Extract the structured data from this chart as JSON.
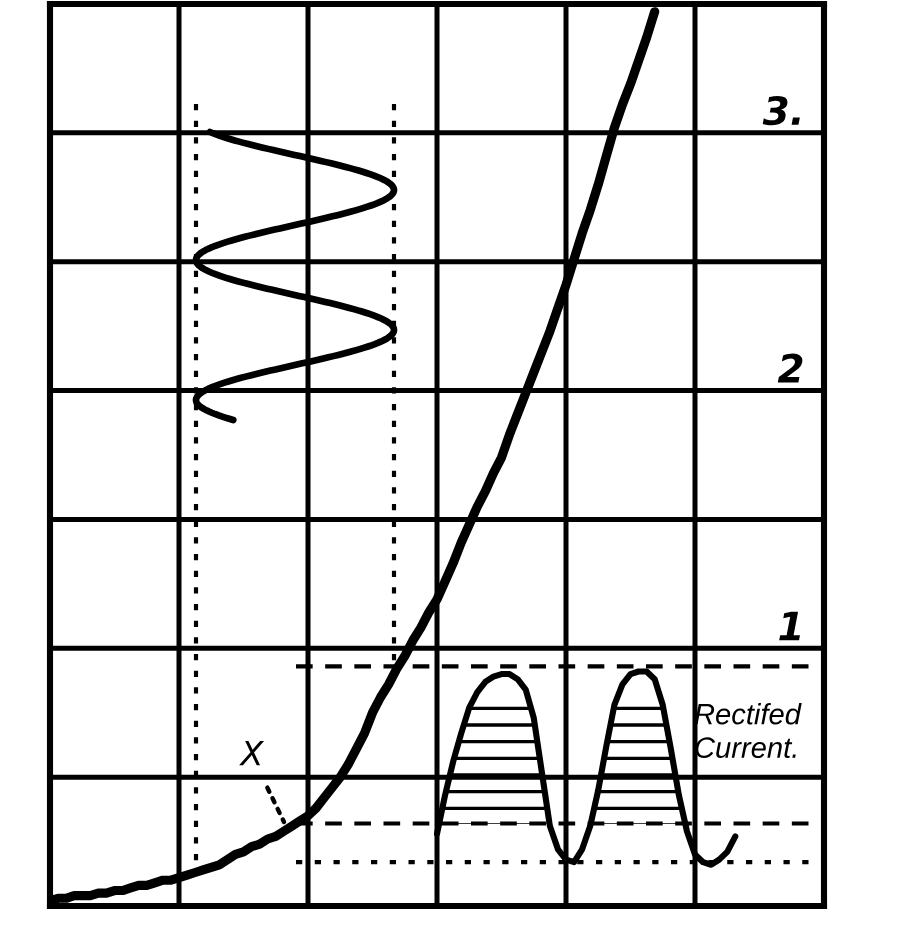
{
  "chart_data": {
    "type": "line",
    "categories": [
      null,
      null,
      null,
      null,
      null,
      null,
      null,
      null,
      null,
      null,
      null,
      null,
      null,
      null,
      null,
      null,
      null,
      null,
      null,
      null,
      null,
      null,
      null,
      null,
      null,
      null,
      null,
      null,
      null,
      null,
      null,
      null,
      null,
      null,
      null,
      null,
      null,
      null,
      null,
      null,
      null,
      null,
      null,
      null,
      null,
      null,
      null,
      null,
      null,
      null,
      null,
      null,
      null,
      null,
      null,
      null,
      null,
      null,
      null,
      null,
      null,
      null,
      null,
      null,
      null,
      null,
      null,
      null,
      null,
      null,
      null,
      null,
      null,
      null,
      null,
      null,
      null,
      null,
      null,
      null,
      null,
      null,
      null,
      null,
      null,
      null,
      null,
      null,
      null,
      null,
      null,
      null,
      null,
      null,
      null,
      null,
      null
    ],
    "series": [
      {
        "color": "#000000",
        "values": [
          0.02,
          0.03,
          0.03,
          0.04,
          0.04,
          0.04,
          0.05,
          0.05,
          0.06,
          0.06,
          0.07,
          0.08,
          0.08,
          0.09,
          0.1,
          0.1,
          0.11,
          0.12,
          0.13,
          0.14,
          0.15,
          0.16,
          0.18,
          0.2,
          0.21,
          0.23,
          0.24,
          0.26,
          0.27,
          0.29,
          0.31,
          0.33,
          0.35,
          0.38,
          0.42,
          0.46,
          0.5,
          0.55,
          0.61,
          0.67,
          0.75,
          0.81,
          0.86,
          0.92,
          0.97,
          1.03,
          1.08,
          1.14,
          1.19,
          1.26,
          1.33,
          1.41,
          1.48,
          1.55,
          1.61,
          1.68,
          1.74,
          1.83,
          1.91,
          1.99,
          2.07,
          2.15,
          2.23,
          2.32,
          2.41,
          2.51,
          2.61,
          2.7,
          2.8,
          2.91,
          3.02,
          3.11,
          3.19,
          3.28,
          3.37,
          3.47,
          null,
          null,
          null,
          null,
          null,
          null,
          null,
          null,
          null,
          null,
          null,
          null,
          null,
          null,
          null,
          null,
          null,
          null,
          null,
          null,
          null
        ]
      },
      {
        "name": "Rectifed\nCurrent.",
        "color": "#000000",
        "values": [
          null,
          null,
          null,
          null,
          null,
          null,
          null,
          null,
          null,
          null,
          null,
          null,
          null,
          null,
          null,
          null,
          null,
          null,
          null,
          null,
          null,
          null,
          null,
          null,
          null,
          null,
          null,
          null,
          null,
          null,
          null,
          null,
          null,
          null,
          null,
          null,
          null,
          null,
          null,
          null,
          null,
          null,
          null,
          null,
          null,
          null,
          null,
          null,
          0.28,
          0.43,
          0.56,
          0.67,
          0.77,
          0.83,
          0.87,
          0.89,
          0.9,
          0.9,
          0.88,
          0.84,
          0.73,
          0.52,
          0.31,
          0.22,
          0.18,
          0.17,
          0.22,
          0.31,
          0.45,
          0.62,
          0.78,
          0.86,
          0.9,
          0.91,
          0.91,
          0.88,
          0.78,
          0.61,
          0.43,
          0.29,
          0.2,
          0.17,
          0.16,
          0.18,
          0.21,
          0.27,
          null,
          null,
          null,
          null,
          null,
          null,
          null,
          null,
          null,
          null,
          null
        ]
      }
    ],
    "ylim": [
      0,
      3.5
    ],
    "yticks": [
      {
        "value": 0,
        "label": null
      },
      {
        "value": 0.5,
        "label": null
      },
      1,
      {
        "value": 1.5,
        "label": null
      },
      2,
      {
        "value": 2.5,
        "label": null
      },
      {
        "value": 3,
        "label": "3."
      },
      {
        "value": 3.5,
        "label": null
      }
    ],
    "tick_labels": "y",
    "grid": true,
    "ref_lines": [
      {
        "axis": "y",
        "value": 0.93,
        "line_style": "dashed",
        "color": "#000000"
      },
      {
        "axis": "y",
        "value": 0.32,
        "line_style": "dashed",
        "color": "#000000"
      },
      {
        "axis": "y",
        "value": 0.17,
        "line_style": "dotted",
        "color": "#000000"
      }
    ],
    "annotations": [
      "X"
    ]
  }
}
